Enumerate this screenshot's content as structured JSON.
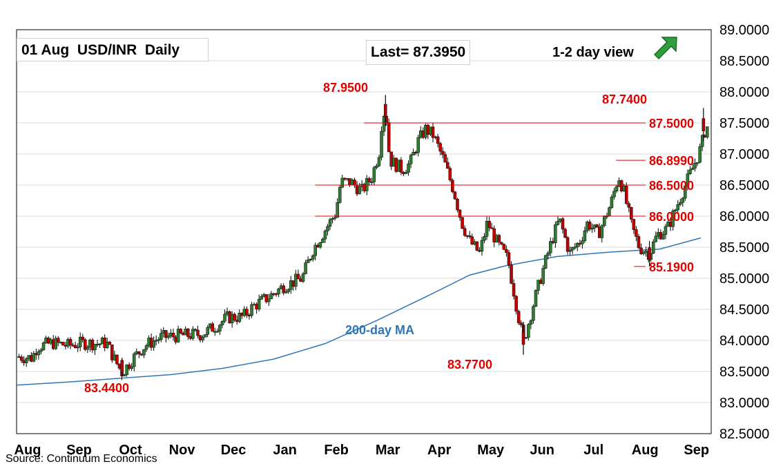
{
  "header": {
    "title": "01 Aug  USD/INR  Daily",
    "last_label": "Last= 87.3950",
    "view_label": "1-2 day view",
    "view_icon": "up-right-arrow-icon",
    "source": "Source: Continuum Economics"
  },
  "colors": {
    "up_candle": "#2e7d32",
    "down_candle": "#c00000",
    "level_line": "#e00000",
    "ma_line": "#2e75b6",
    "annotation": "#e00000",
    "arrow": "#2e9e3e"
  },
  "chart_data": {
    "type": "candlestick",
    "title": "01 Aug  USD/INR  Daily",
    "x_range_months": [
      0,
      13.5
    ],
    "y_range": [
      82.5,
      89.0
    ],
    "grid": true,
    "y_ticks": [
      "82.5000",
      "83.0000",
      "83.5000",
      "84.0000",
      "84.5000",
      "85.0000",
      "85.5000",
      "86.0000",
      "86.5000",
      "87.0000",
      "87.5000",
      "88.0000",
      "88.5000",
      "89.0000"
    ],
    "x_ticks": [
      "Aug",
      "Sep",
      "Oct",
      "Nov",
      "Dec",
      "Jan",
      "Feb",
      "Mar",
      "Apr",
      "May",
      "Jun",
      "Jul",
      "Aug",
      "Sep"
    ],
    "last": 87.395,
    "price_path": [
      [
        0.0,
        83.74
      ],
      [
        0.3,
        83.72
      ],
      [
        0.4,
        83.9
      ],
      [
        0.7,
        83.96
      ],
      [
        1.0,
        83.92
      ],
      [
        1.3,
        83.96
      ],
      [
        1.6,
        83.95
      ],
      [
        1.75,
        83.96
      ],
      [
        1.9,
        83.7
      ],
      [
        2.05,
        83.48
      ],
      [
        2.25,
        83.7
      ],
      [
        2.5,
        83.92
      ],
      [
        2.8,
        84.05
      ],
      [
        3.2,
        84.08
      ],
      [
        3.6,
        84.1
      ],
      [
        3.9,
        84.25
      ],
      [
        4.1,
        84.37
      ],
      [
        4.4,
        84.38
      ],
      [
        4.6,
        84.55
      ],
      [
        4.9,
        84.7
      ],
      [
        5.2,
        84.88
      ],
      [
        5.55,
        85.0
      ],
      [
        5.75,
        85.45
      ],
      [
        6.05,
        85.85
      ],
      [
        6.2,
        86.05
      ],
      [
        6.3,
        86.55
      ],
      [
        6.5,
        86.55
      ],
      [
        6.7,
        86.4
      ],
      [
        6.9,
        86.62
      ],
      [
        7.05,
        87.05
      ],
      [
        7.1,
        87.55
      ],
      [
        7.17,
        87.75
      ],
      [
        7.25,
        86.9
      ],
      [
        7.5,
        86.75
      ],
      [
        7.65,
        86.85
      ],
      [
        7.8,
        87.2
      ],
      [
        7.95,
        87.4
      ],
      [
        8.1,
        87.3
      ],
      [
        8.3,
        86.9
      ],
      [
        8.5,
        86.4
      ],
      [
        8.65,
        85.9
      ],
      [
        8.8,
        85.6
      ],
      [
        9.0,
        85.4
      ],
      [
        9.15,
        85.9
      ],
      [
        9.35,
        85.55
      ],
      [
        9.55,
        85.3
      ],
      [
        9.75,
        84.4
      ],
      [
        9.85,
        83.97
      ],
      [
        10.05,
        84.6
      ],
      [
        10.2,
        85.05
      ],
      [
        10.4,
        85.6
      ],
      [
        10.55,
        85.95
      ],
      [
        10.75,
        85.4
      ],
      [
        10.95,
        85.6
      ],
      [
        11.1,
        85.9
      ],
      [
        11.3,
        85.7
      ],
      [
        11.55,
        86.2
      ],
      [
        11.7,
        86.65
      ],
      [
        11.8,
        86.4
      ],
      [
        11.95,
        85.85
      ],
      [
        12.1,
        85.5
      ],
      [
        12.3,
        85.4
      ],
      [
        12.45,
        85.7
      ],
      [
        12.65,
        85.8
      ],
      [
        12.85,
        86.2
      ],
      [
        13.05,
        86.6
      ],
      [
        13.2,
        86.89
      ],
      [
        13.3,
        87.1
      ],
      [
        13.4,
        87.45
      ],
      [
        13.5,
        87.395
      ]
    ],
    "marked_points": [
      {
        "x": 2.05,
        "high": 83.72,
        "low": 83.44
      },
      {
        "x": 7.17,
        "high": 87.95,
        "low": 87.45
      },
      {
        "x": 9.85,
        "high": 84.3,
        "low": 83.77
      },
      {
        "x": 12.3,
        "high": 85.6,
        "low": 85.19
      },
      {
        "x": 13.35,
        "high": 87.74,
        "low": 87.2
      }
    ],
    "ma_200": {
      "label": "200-day MA",
      "points": [
        [
          0.0,
          83.28
        ],
        [
          1.0,
          83.33
        ],
        [
          2.0,
          83.39
        ],
        [
          3.0,
          83.45
        ],
        [
          4.0,
          83.55
        ],
        [
          5.0,
          83.7
        ],
        [
          6.0,
          83.95
        ],
        [
          7.0,
          84.32
        ],
        [
          8.0,
          84.72
        ],
        [
          8.8,
          85.05
        ],
        [
          9.5,
          85.2
        ],
        [
          10.5,
          85.35
        ],
        [
          11.5,
          85.42
        ],
        [
          12.5,
          85.47
        ],
        [
          13.3,
          85.65
        ]
      ]
    },
    "levels": [
      {
        "value": 87.95,
        "label": "87.9500",
        "line": false
      },
      {
        "value": 87.74,
        "label": "87.7400",
        "line": false
      },
      {
        "value": 87.5,
        "label": "87.5000",
        "line": true,
        "from_month": 6.75
      },
      {
        "value": 86.899,
        "label": "86.8990",
        "line": true,
        "from_month": 11.65
      },
      {
        "value": 86.5,
        "label": "86.5000",
        "line": true,
        "from_month": 5.8
      },
      {
        "value": 86.0,
        "label": "86.0000",
        "line": true,
        "from_month": 5.8
      },
      {
        "value": 85.19,
        "label": "85.1900",
        "line": true,
        "from_month": 12.0
      },
      {
        "value": 83.77,
        "label": "83.7700",
        "line": false
      },
      {
        "value": 83.44,
        "label": "83.4400",
        "line": false
      }
    ]
  }
}
